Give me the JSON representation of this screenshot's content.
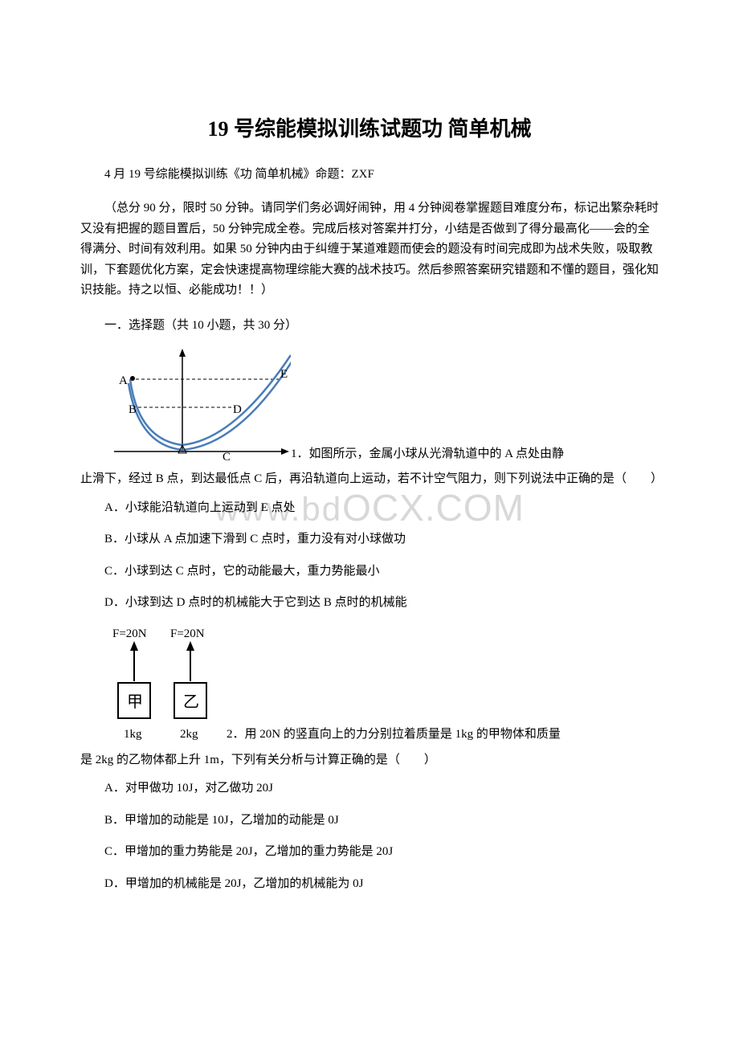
{
  "title": "19 号综能模拟训练试题功 简单机械",
  "subtitle": "4 月 19 号综能模拟训练《功 简单机械》命题：ZXF",
  "instructions": "（总分 90 分，限时 50 分钟。请同学们务必调好闹钟，用 4 分钟阅卷掌握题目难度分布，标记出繁杂耗时又没有把握的题目置后，50 分钟完成全卷。完成后核对答案并打分，小结是否做到了得分最高化——会的全得满分、时间有效利用。如果 50 分钟内由于纠缠于某道难题而使会的题没有时间完成即为战术失败，吸取教训，下套题优化方案，定会快速提高物理综能大赛的战术技巧。然后参照答案研究错题和不懂的题目，强化知识技能。持之以恒、必能成功！！）",
  "section1_header": "一．选择题（共 10 小题，共 30 分）",
  "watermark": "www.bdocx.com",
  "q1": {
    "text_line1": "1．如图所示，金属小球从光滑轨道中的 A 点处由静",
    "text_line2": "止滑下，经过 B 点，到达最低点 C 后，再沿轨道向上运动，若不计空气阻力，则下列说法中正确的是（　　）",
    "optA": "A．小球能沿轨道向上运动到 E 点处",
    "optB": "B．小球从 A 点加速下滑到 C 点时，重力没有对小球做功",
    "optC": "C．小球到达 C 点时，它的动能最大，重力势能最小",
    "optD": "D．小球到达 D 点时的机械能大于它到达 B 点时的机械能",
    "figure": {
      "labels": {
        "A": "A",
        "B": "B",
        "C": "C",
        "D": "D",
        "E": "E"
      },
      "track_color": "#4a7db8",
      "track_width": 2,
      "axis_color": "#000000",
      "dash_color": "#000000"
    }
  },
  "q2": {
    "text_line1": "2．用 20N 的竖直向上的力分别拉着质量是 1kg 的甲物体和质量",
    "text_line2": "是 2kg 的乙物体都上升 1m，下列有关分析与计算正确的是（　　）",
    "optA": "A．对甲做功 10J，对乙做功 20J",
    "optB": "B．甲增加的动能是 10J，乙增加的动能是 0J",
    "optC": "C．甲增加的重力势能是 20J，乙增加的重力势能是 20J",
    "optD": "D．甲增加的机械能是 20J，乙增加的机械能为 0J",
    "figure": {
      "force_label": "F=20N",
      "box1_label": "甲",
      "box2_label": "乙",
      "mass1": "1kg",
      "mass2": "2kg",
      "line_color": "#000000"
    }
  }
}
